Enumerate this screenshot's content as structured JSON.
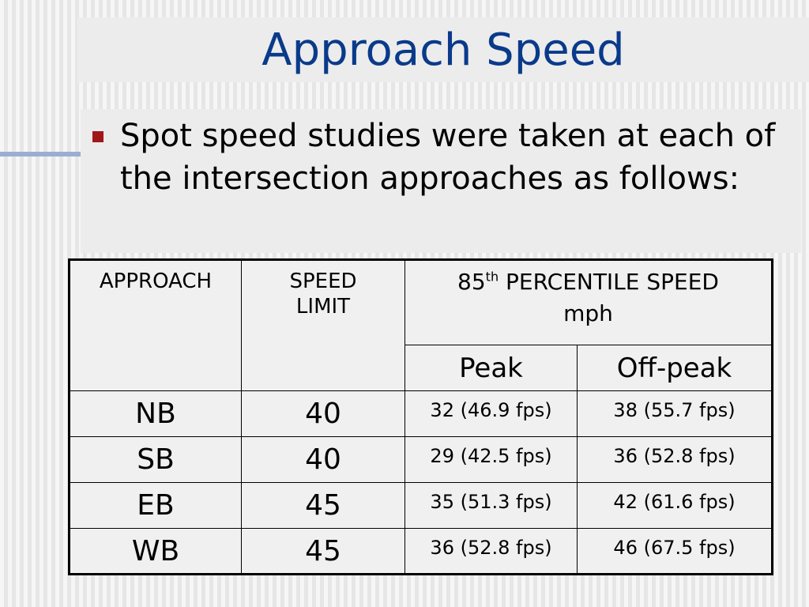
{
  "slide": {
    "title": "Approach Speed",
    "bullet": "Spot speed studies were taken at each of the intersection approaches as follows:"
  },
  "table": {
    "headers": {
      "approach": "APPROACH",
      "speed_limit_line1": "SPEED",
      "speed_limit_line2": "LIMIT",
      "percentile_number": "85",
      "percentile_suffix": "th",
      "percentile_label": "PERCENTILE SPEED",
      "percentile_unit": "mph",
      "peak": "Peak",
      "off_peak": "Off-peak"
    },
    "rows": [
      {
        "approach": "NB",
        "limit": "40",
        "peak": "32 (46.9 fps)",
        "off_peak": "38 (55.7 fps)"
      },
      {
        "approach": "SB",
        "limit": "40",
        "peak": "29 (42.5 fps)",
        "off_peak": "36 (52.8 fps)"
      },
      {
        "approach": "EB",
        "limit": "45",
        "peak": "35 (51.3 fps)",
        "off_peak": "42 (61.6 fps)"
      },
      {
        "approach": "WB",
        "limit": "45",
        "peak": "36 (52.8 fps)",
        "off_peak": "46 (67.5 fps)"
      }
    ]
  },
  "colors": {
    "title": "#0a3a8a",
    "bullet": "#a01818",
    "accent_line": "#9aaed3"
  }
}
